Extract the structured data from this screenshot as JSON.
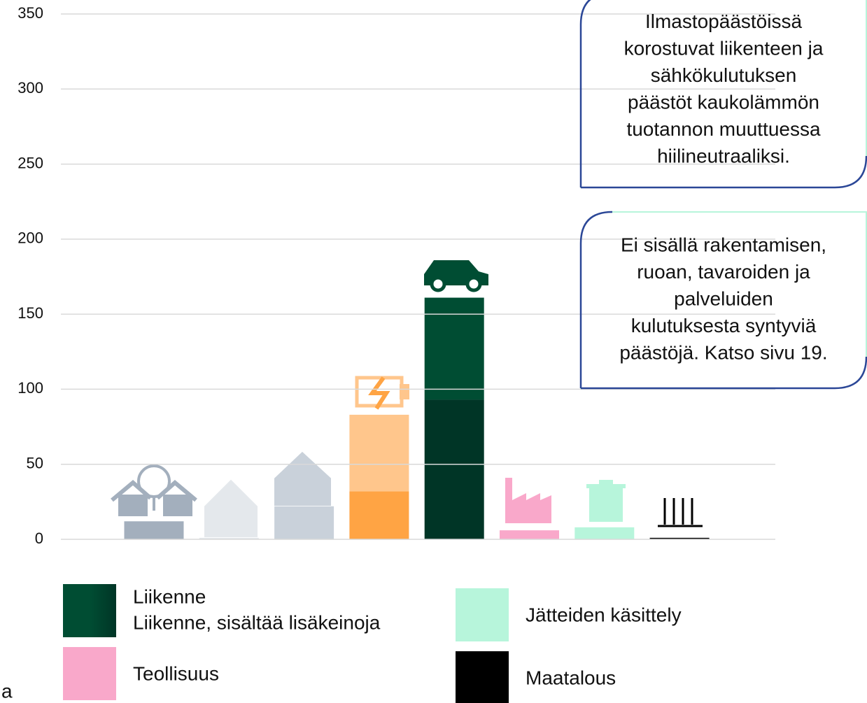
{
  "chart_data": {
    "type": "bar",
    "stacked": true,
    "categories": [
      null,
      null,
      null,
      null,
      null,
      null,
      null,
      null
    ],
    "series": [
      {
        "color": "#a3afbd",
        "values": [
          12,
          null,
          null,
          null,
          null,
          null,
          null,
          null
        ]
      },
      {
        "color": "#e4e8ec",
        "values": [
          null,
          1,
          null,
          null,
          null,
          null,
          null,
          null
        ]
      },
      {
        "color": "#c9d1da",
        "values": [
          null,
          null,
          22,
          null,
          null,
          null,
          null,
          null
        ]
      },
      {
        "color": "#ffa444",
        "values": [
          null,
          null,
          null,
          32,
          null,
          null,
          null,
          null
        ]
      },
      {
        "color": "#ffc68c",
        "values": [
          null,
          null,
          null,
          51,
          null,
          null,
          null,
          null
        ]
      },
      {
        "name": "Liikenne, sisältää lisäkeinoja",
        "color": "#003526",
        "values": [
          null,
          null,
          null,
          null,
          93,
          null,
          null,
          null
        ]
      },
      {
        "name": "Liikenne",
        "color": "#004d33",
        "values": [
          null,
          null,
          null,
          null,
          68,
          null,
          null,
          null
        ]
      },
      {
        "name": "Teollisuus",
        "color": "#f9a8ca",
        "values": [
          null,
          null,
          null,
          null,
          null,
          6,
          null,
          null
        ]
      },
      {
        "name": "Jätteiden käsittely",
        "color": "#b7f5db",
        "values": [
          null,
          null,
          null,
          null,
          null,
          null,
          8,
          null
        ]
      },
      {
        "name": "Maatalous",
        "color": "#000000",
        "values": [
          null,
          null,
          null,
          null,
          null,
          null,
          null,
          1
        ]
      }
    ],
    "ylim": [
      0,
      350
    ],
    "yticks": [
      0,
      50,
      100,
      150,
      200,
      250,
      300,
      350
    ],
    "grid": true,
    "annotations": [
      {
        "lines": [
          "Ilmastopäästöissä",
          "korostuvat liikenteen ja",
          "sähkökulutuksen",
          "päästöt kaukolämmön",
          "tuotannon muuttuessa",
          "hiilineutraaliksi."
        ]
      },
      {
        "lines": [
          "Ei sisällä rakentamisen,",
          "ruoan, tavaroiden ja",
          "palveluiden",
          "kulutuksesta syntyviä",
          "päästöjä. Katso sivu 19."
        ]
      }
    ],
    "fragment": "a"
  }
}
